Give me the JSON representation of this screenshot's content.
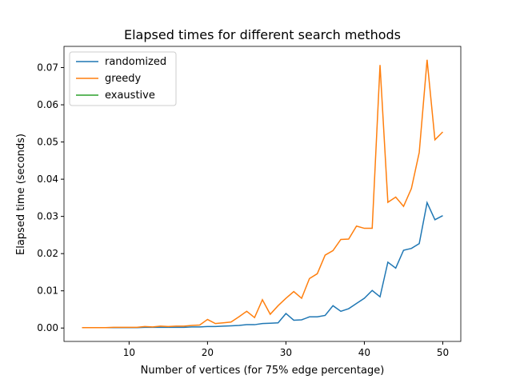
{
  "chart_data": {
    "type": "line",
    "title": "Elapsed times for different search methods",
    "xlabel": "Number of vertices (for 75% edge percentage)",
    "ylabel": "Elapsed time (seconds)",
    "x": [
      4,
      5,
      6,
      7,
      8,
      9,
      10,
      11,
      12,
      13,
      14,
      15,
      16,
      17,
      18,
      19,
      20,
      21,
      22,
      23,
      24,
      25,
      26,
      27,
      28,
      29,
      30,
      31,
      32,
      33,
      34,
      35,
      36,
      37,
      38,
      39,
      40,
      41,
      42,
      43,
      44,
      45,
      46,
      47,
      48,
      49,
      50
    ],
    "series": [
      {
        "name": "randomized",
        "color": "#1f77b4",
        "values": [
          0.0001,
          0.0001,
          0.0001,
          0.0001,
          0.0001,
          0.0001,
          0.0001,
          0.0001,
          0.0002,
          0.0002,
          0.0002,
          0.0002,
          0.0002,
          0.0002,
          0.0003,
          0.0003,
          0.0004,
          0.0004,
          0.0005,
          0.0006,
          0.0007,
          0.0009,
          0.0009,
          0.0012,
          0.0013,
          0.0014,
          0.0039,
          0.0021,
          0.0022,
          0.003,
          0.003,
          0.0034,
          0.006,
          0.0045,
          0.0052,
          0.0066,
          0.008,
          0.0101,
          0.0084,
          0.0177,
          0.0161,
          0.0209,
          0.0214,
          0.0227,
          0.0337,
          0.0291,
          0.0302
        ]
      },
      {
        "name": "greedy",
        "color": "#ff7f0e",
        "values": [
          0.0001,
          0.0001,
          0.0001,
          0.0001,
          0.0002,
          0.0002,
          0.0002,
          0.0002,
          0.0004,
          0.0003,
          0.0005,
          0.0004,
          0.0005,
          0.0005,
          0.0007,
          0.0008,
          0.0023,
          0.0012,
          0.0014,
          0.0016,
          0.003,
          0.0045,
          0.0028,
          0.0076,
          0.0037,
          0.006,
          0.008,
          0.0098,
          0.008,
          0.0133,
          0.0146,
          0.0196,
          0.0208,
          0.0238,
          0.0239,
          0.0274,
          0.0268,
          0.0268,
          0.0707,
          0.0338,
          0.0352,
          0.0327,
          0.0375,
          0.0472,
          0.0721,
          0.0506,
          0.0527
        ]
      },
      {
        "name": "exaustive",
        "color": "#2ca02c",
        "values": [
          null,
          null,
          null,
          null,
          null,
          null,
          null,
          null,
          null,
          null,
          null,
          null,
          null,
          null,
          null,
          null,
          null,
          null,
          null,
          null,
          null,
          null,
          null,
          null,
          null,
          null,
          null,
          null,
          null,
          null,
          null,
          null,
          null,
          null,
          null,
          null,
          null,
          null,
          null,
          null,
          null,
          null,
          null,
          null,
          null,
          null,
          null
        ]
      }
    ],
    "xlim": [
      1.7,
      52.3
    ],
    "xticks": [
      10,
      20,
      30,
      40,
      50
    ],
    "ylim": [
      -0.0036,
      0.0757
    ],
    "yticks": [
      {
        "value": 0,
        "label": "0.00"
      },
      {
        "value": 0.01,
        "label": "0.01"
      },
      {
        "value": 0.02,
        "label": "0.02"
      },
      {
        "value": 0.03,
        "label": "0.03"
      },
      {
        "value": 0.04,
        "label": "0.04"
      },
      {
        "value": 0.05,
        "label": "0.05"
      },
      {
        "value": 0.06,
        "label": "0.06"
      },
      {
        "value": 0.07,
        "label": "0.07"
      }
    ],
    "legend": "upper left"
  }
}
